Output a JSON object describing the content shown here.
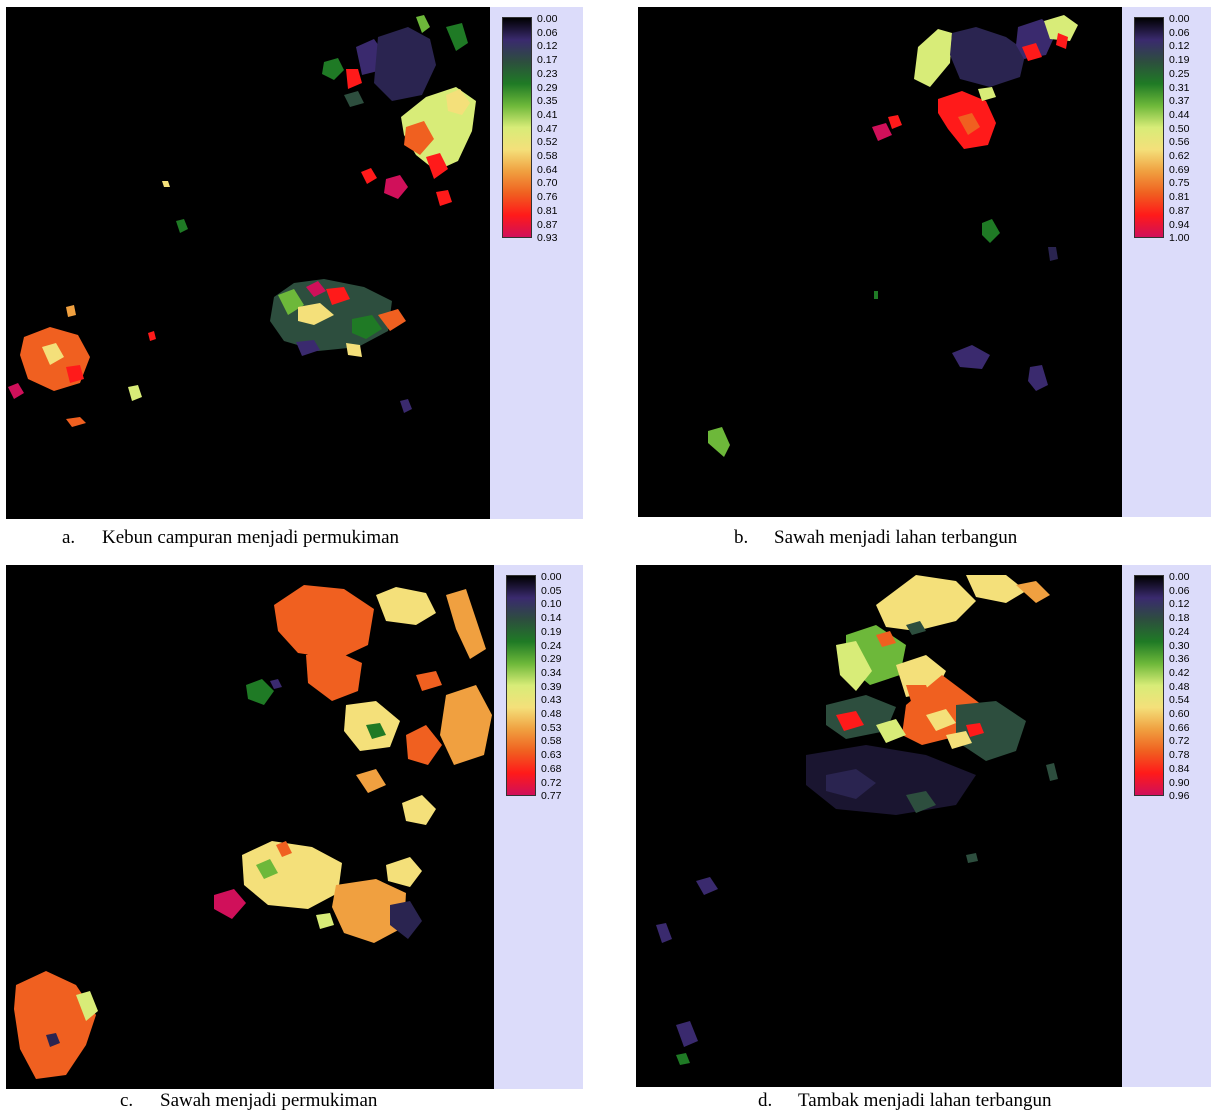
{
  "colormap": [
    "#000000",
    "#3a2a6e",
    "#2d4e3e",
    "#1f7a25",
    "#6db83a",
    "#d8ec78",
    "#f4e07a",
    "#f0a040",
    "#f06020",
    "#ff1a1a",
    "#d0105a"
  ],
  "panels": [
    {
      "id": "a",
      "caption_letter": "a.",
      "caption_text": "Kebun campuran menjadi permukiman",
      "ticks": [
        "0.00",
        "0.06",
        "0.12",
        "0.17",
        "0.23",
        "0.29",
        "0.35",
        "0.41",
        "0.47",
        "0.52",
        "0.58",
        "0.64",
        "0.70",
        "0.76",
        "0.81",
        "0.87",
        "0.93"
      ]
    },
    {
      "id": "b",
      "caption_letter": "b.",
      "caption_text": "Sawah menjadi lahan terbangun",
      "ticks": [
        "0.00",
        "0.06",
        "0.12",
        "0.19",
        "0.25",
        "0.31",
        "0.37",
        "0.44",
        "0.50",
        "0.56",
        "0.62",
        "0.69",
        "0.75",
        "0.81",
        "0.87",
        "0.94",
        "1.00"
      ]
    },
    {
      "id": "c",
      "caption_letter": "c.",
      "caption_text": "Sawah menjadi permukiman",
      "ticks": [
        "0.00",
        "0.05",
        "0.10",
        "0.14",
        "0.19",
        "0.24",
        "0.29",
        "0.34",
        "0.39",
        "0.43",
        "0.48",
        "0.53",
        "0.58",
        "0.63",
        "0.68",
        "0.72",
        "0.77"
      ]
    },
    {
      "id": "d",
      "caption_letter": "d.",
      "caption_text": "Tambak menjadi lahan terbangun",
      "ticks": [
        "0.00",
        "0.06",
        "0.12",
        "0.18",
        "0.24",
        "0.30",
        "0.36",
        "0.42",
        "0.48",
        "0.54",
        "0.60",
        "0.66",
        "0.72",
        "0.78",
        "0.84",
        "0.90",
        "0.96"
      ]
    }
  ]
}
